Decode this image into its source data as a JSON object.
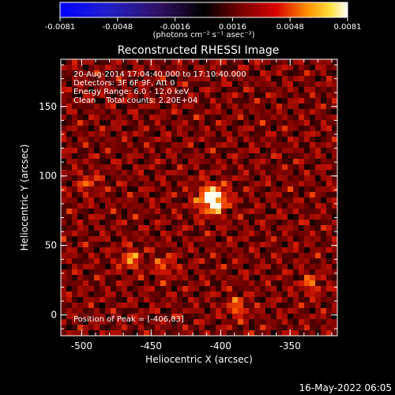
{
  "colorbar": {
    "tick_labels": [
      "-0.0081",
      "-0.0048",
      "-0.0016",
      "0.0016",
      "0.0048",
      "0.0081"
    ],
    "unit_label": "(photons cm⁻² s⁻¹ asec⁻²)",
    "range": [
      -0.0081,
      0.0081
    ]
  },
  "chart_data": {
    "type": "heatmap",
    "title": "Reconstructed RHESSI Image",
    "xlabel": "Heliocentric X (arcsec)",
    "ylabel": "Heliocentric Y (arcsec)",
    "xlim": [
      -515,
      -316
    ],
    "ylim": [
      -15,
      184
    ],
    "xticks": [
      -500,
      -450,
      -400,
      -350
    ],
    "yticks": [
      0,
      50,
      100,
      150
    ],
    "info_lines": [
      "20-Aug-2014 17:04:40.000 to 17:10:40.000",
      "Detectors: 3F 6F 9F, Att 0",
      "Energy Range: 6.0 - 12.0 keV",
      "Clean    Total counts: 2.20E+04"
    ],
    "peak_label": "Position of Peak = [-406,83]",
    "peak": [
      -406,
      83
    ],
    "secondary_sources": [
      {
        "x": -465,
        "y": 40,
        "strength": 0.45
      },
      {
        "x": -440,
        "y": 35,
        "strength": 0.35
      },
      {
        "x": -388,
        "y": 5,
        "strength": 0.4
      },
      {
        "x": -335,
        "y": 22,
        "strength": 0.35
      },
      {
        "x": -495,
        "y": 95,
        "strength": 0.3
      }
    ]
  },
  "footer": {
    "timestamp": "16-May-2022 06:05"
  }
}
